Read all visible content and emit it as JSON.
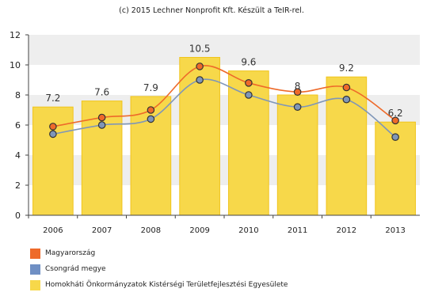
{
  "credit": "(c) 2015 Lechner Nonprofit Kft. Készült a TeIR-rel.",
  "chart_data": {
    "type": "bar",
    "categories": [
      "2006",
      "2007",
      "2008",
      "2009",
      "2010",
      "2011",
      "2012",
      "2013"
    ],
    "ylim": [
      0,
      12
    ],
    "yticks": [
      "0",
      "2",
      "4",
      "6",
      "8",
      "10",
      "12"
    ],
    "grid": "alternating horizontal bands",
    "legend_position": "bottom-left",
    "series": [
      {
        "name": "Homokháti Önkormányzatok Kistérségi Területfejlesztési Egyesülete",
        "kind": "bar",
        "color": "#f7d84a",
        "values": [
          7.2,
          7.6,
          7.9,
          10.5,
          9.6,
          8,
          9.2,
          6.2
        ],
        "labels": [
          "7.2",
          "7.6",
          "7.9",
          "10.5",
          "9.6",
          "8",
          "9.2",
          "6.2"
        ]
      },
      {
        "name": "Magyarország",
        "kind": "line",
        "color": "#ee6a2a",
        "values": [
          5.9,
          6.5,
          7.0,
          9.9,
          8.8,
          8.2,
          8.5,
          6.3
        ]
      },
      {
        "name": "Csongrád megye",
        "kind": "line",
        "color": "#7f96b8",
        "values": [
          5.4,
          6.0,
          6.4,
          9.0,
          8.0,
          7.2,
          7.7,
          5.2
        ]
      }
    ]
  },
  "legend": [
    {
      "label": "Magyarország",
      "color": "#ee6a2a"
    },
    {
      "label": "Csongrád megye",
      "color": "#6f8fc4"
    },
    {
      "label": "Homokháti Önkormányzatok Kistérségi Területfejlesztési Egyesülete",
      "color": "#f7d84a"
    }
  ]
}
